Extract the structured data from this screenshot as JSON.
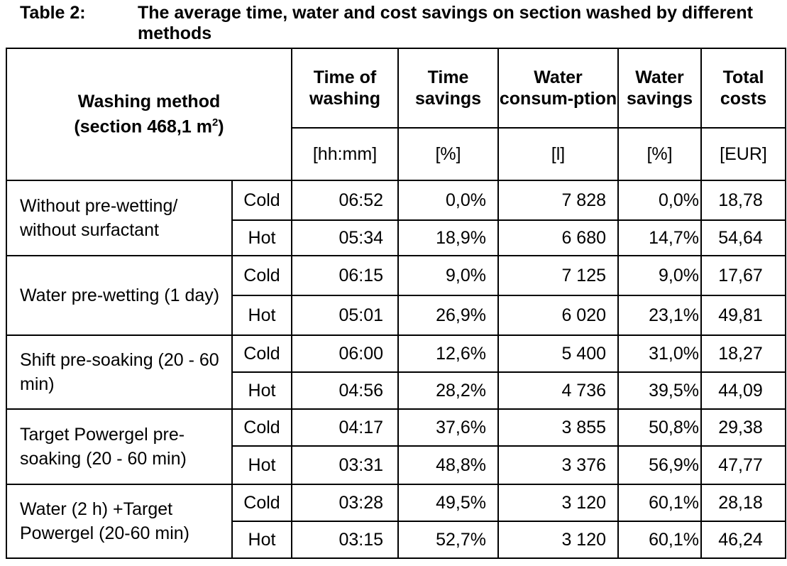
{
  "caption": {
    "label": "Table 2:",
    "text": "The average time, water and cost savings on section washed by different methods"
  },
  "header": {
    "method_title": "Washing method",
    "method_subtitle_pre": "(section 468,1 m",
    "method_subtitle_sup": "2",
    "method_subtitle_post": ")",
    "columns": [
      {
        "title": "Time of washing",
        "unit": "[hh:mm]"
      },
      {
        "title": "Time savings",
        "unit": "[%]"
      },
      {
        "title": "Water consum-ption",
        "unit": "[l]"
      },
      {
        "title": "Water savings",
        "unit": "[%]"
      },
      {
        "title": "Total costs",
        "unit": "[EUR]"
      }
    ]
  },
  "groups": [
    {
      "method": "Without pre-wetting/ without surfactant",
      "rows": [
        {
          "variant": "Cold",
          "time": "06:52",
          "time_savings": "0,0%",
          "water": "7 828",
          "water_savings": "0,0%",
          "cost": "18,78"
        },
        {
          "variant": "Hot",
          "time": "05:34",
          "time_savings": "18,9%",
          "water": "6 680",
          "water_savings": "14,7%",
          "cost": "54,64"
        }
      ]
    },
    {
      "method": "Water pre-wetting (1 day)",
      "rows": [
        {
          "variant": "Cold",
          "time": "06:15",
          "time_savings": "9,0%",
          "water": "7 125",
          "water_savings": "9,0%",
          "cost": "17,67"
        },
        {
          "variant": "Hot",
          "time": "05:01",
          "time_savings": "26,9%",
          "water": "6 020",
          "water_savings": "23,1%",
          "cost": "49,81"
        }
      ]
    },
    {
      "method": "Shift pre-soaking (20 - 60 min)",
      "rows": [
        {
          "variant": "Cold",
          "time": "06:00",
          "time_savings": "12,6%",
          "water": "5 400",
          "water_savings": "31,0%",
          "cost": "18,27"
        },
        {
          "variant": "Hot",
          "time": "04:56",
          "time_savings": "28,2%",
          "water": "4 736",
          "water_savings": "39,5%",
          "cost": "44,09"
        }
      ]
    },
    {
      "method": "Target Powergel pre-soaking (20 - 60 min)",
      "rows": [
        {
          "variant": "Cold",
          "time": "04:17",
          "time_savings": "37,6%",
          "water": "3 855",
          "water_savings": "50,8%",
          "cost": "29,38"
        },
        {
          "variant": "Hot",
          "time": "03:31",
          "time_savings": "48,8%",
          "water": "3 376",
          "water_savings": "56,9%",
          "cost": "47,77"
        }
      ]
    },
    {
      "method": "Water (2 h) +Target Powergel (20-60 min)",
      "rows": [
        {
          "variant": "Cold",
          "time": "03:28",
          "time_savings": "49,5%",
          "water": "3 120",
          "water_savings": "60,1%",
          "cost": "28,18"
        },
        {
          "variant": "Hot",
          "time": "03:15",
          "time_savings": "52,7%",
          "water": "3 120",
          "water_savings": "60,1%",
          "cost": "46,24"
        }
      ]
    }
  ]
}
